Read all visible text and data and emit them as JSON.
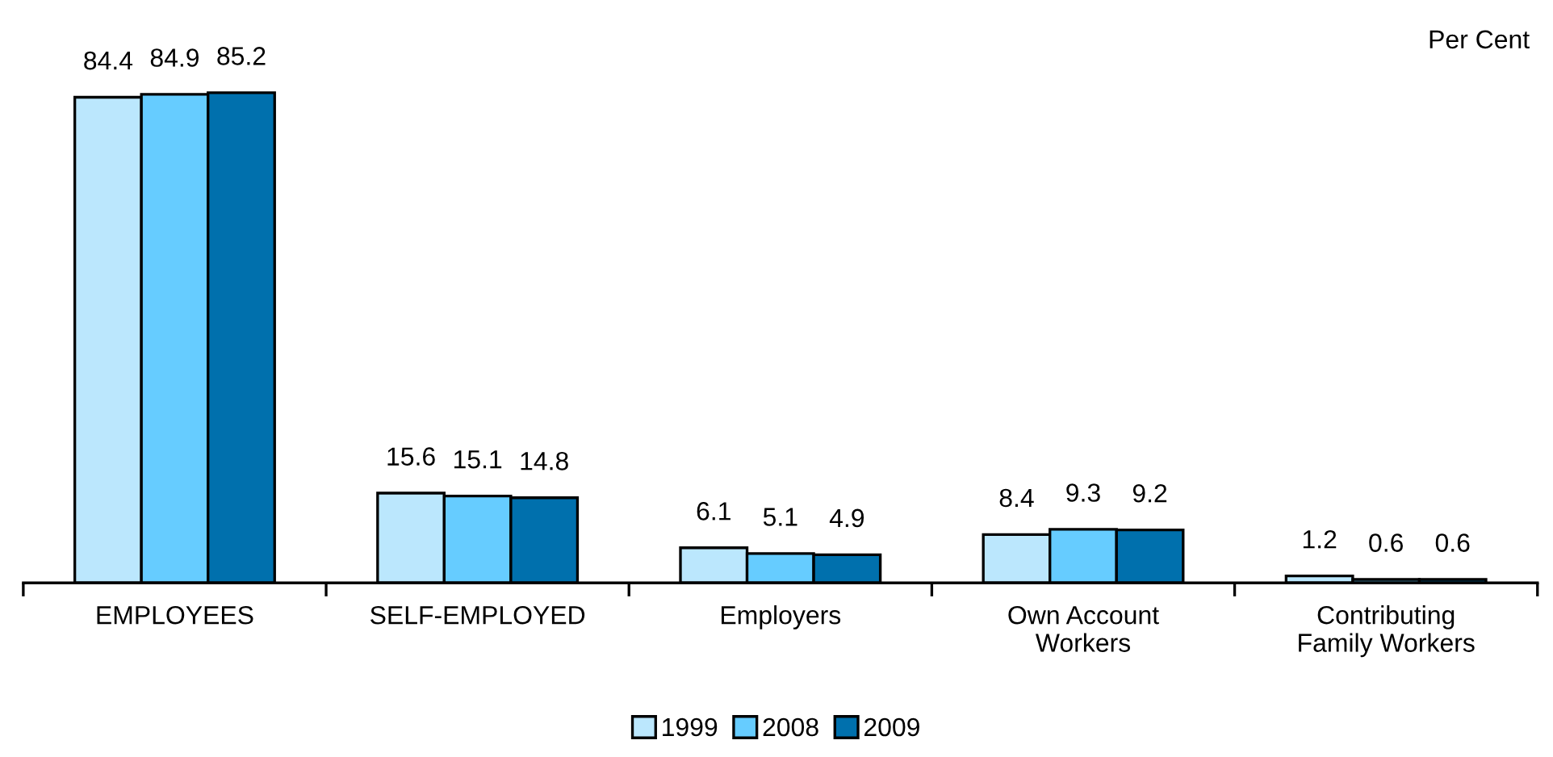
{
  "chart_data": {
    "type": "bar",
    "categories": [
      "EMPLOYEES",
      "SELF-EMPLOYED",
      "Employers",
      "Own Account\nWorkers",
      "Contributing\nFamily Workers"
    ],
    "series": [
      {
        "name": "1999",
        "color": "#bbe7fd",
        "values": [
          84.4,
          15.6,
          6.1,
          8.4,
          1.2
        ]
      },
      {
        "name": "2008",
        "color": "#66ccff",
        "values": [
          84.9,
          15.1,
          5.1,
          9.3,
          0.6
        ]
      },
      {
        "name": "2009",
        "color": "#0070ad",
        "values": [
          85.2,
          14.8,
          4.9,
          9.2,
          0.6
        ]
      }
    ],
    "ylabel": "Per Cent",
    "data_labels": true,
    "legend": "bottom",
    "grid": false
  }
}
